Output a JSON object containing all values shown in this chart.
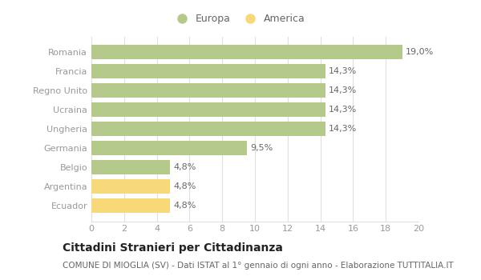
{
  "categories": [
    "Romania",
    "Francia",
    "Regno Unito",
    "Ucraina",
    "Ungheria",
    "Germania",
    "Belgio",
    "Argentina",
    "Ecuador"
  ],
  "values": [
    19.0,
    14.3,
    14.3,
    14.3,
    14.3,
    9.5,
    4.8,
    4.8,
    4.8
  ],
  "labels": [
    "19,0%",
    "14,3%",
    "14,3%",
    "14,3%",
    "14,3%",
    "9,5%",
    "4,8%",
    "4,8%",
    "4,8%"
  ],
  "colors": [
    "#b5c98a",
    "#b5c98a",
    "#b5c98a",
    "#b5c98a",
    "#b5c98a",
    "#b5c98a",
    "#b5c98a",
    "#f7d97a",
    "#f7d97a"
  ],
  "legend_labels": [
    "Europa",
    "America"
  ],
  "legend_colors": [
    "#b5c98a",
    "#f7d97a"
  ],
  "xlim": [
    0,
    20
  ],
  "xticks": [
    0,
    2,
    4,
    6,
    8,
    10,
    12,
    14,
    16,
    18,
    20
  ],
  "title": "Cittadini Stranieri per Cittadinanza",
  "subtitle": "COMUNE DI MIOGLIA (SV) - Dati ISTAT al 1° gennaio di ogni anno - Elaborazione TUTTITALIA.IT",
  "background_color": "#ffffff",
  "grid_color": "#e0e0e0",
  "bar_height": 0.75,
  "title_fontsize": 10,
  "subtitle_fontsize": 7.5,
  "label_fontsize": 8,
  "tick_fontsize": 8,
  "legend_fontsize": 9
}
